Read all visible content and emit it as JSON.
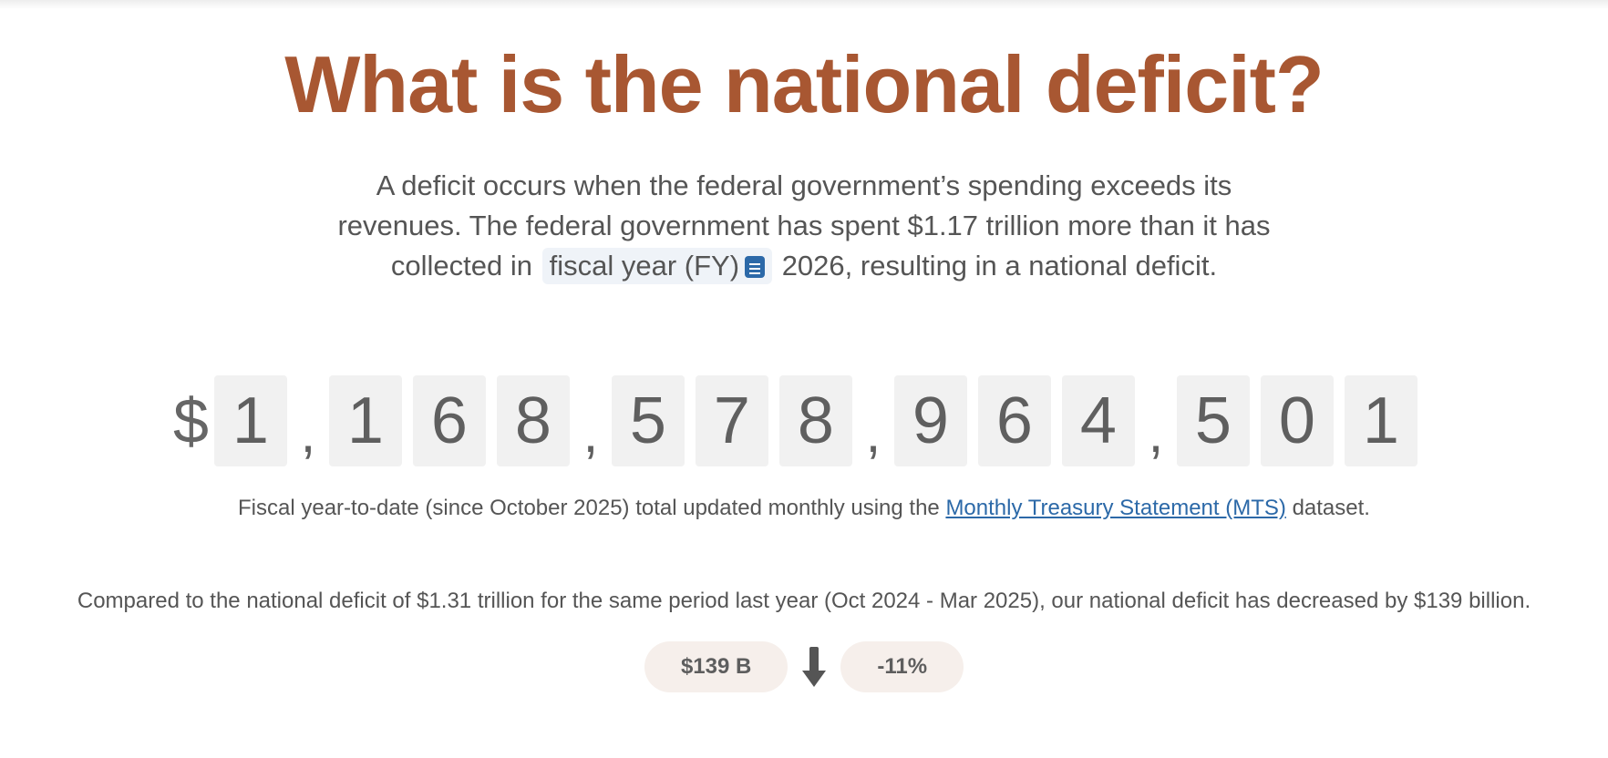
{
  "header": {
    "title": "What is the national deficit?"
  },
  "intro": {
    "text_before": "A deficit occurs when the federal government’s spending exceeds its revenues. The federal government has spent $1.17 trillion more than it has collected in",
    "glossary_term": "fiscal year (FY)",
    "text_after": "2026, resulting in a national deficit."
  },
  "counter": {
    "currency_symbol": "$",
    "groups": [
      "1",
      "168",
      "578",
      "964",
      "501"
    ]
  },
  "caption": {
    "text_before": "Fiscal year-to-date (since October 2025) total updated monthly using the",
    "link_label": "Monthly Treasury Statement (MTS)",
    "text_after": "dataset."
  },
  "comparison": {
    "text": "Compared to the national deficit of $1.31 trillion for the same period last year (Oct 2024 - Mar 2025), our national deficit has decreased by $139 billion.",
    "change_amount": "$139 B",
    "change_percent": "-11%",
    "direction_icon": "arrow-down-icon"
  },
  "colors": {
    "title": "#a85732",
    "link": "#2c69a8",
    "pill_bg": "#f6efeb",
    "digit_bg": "#f1f1f1"
  }
}
